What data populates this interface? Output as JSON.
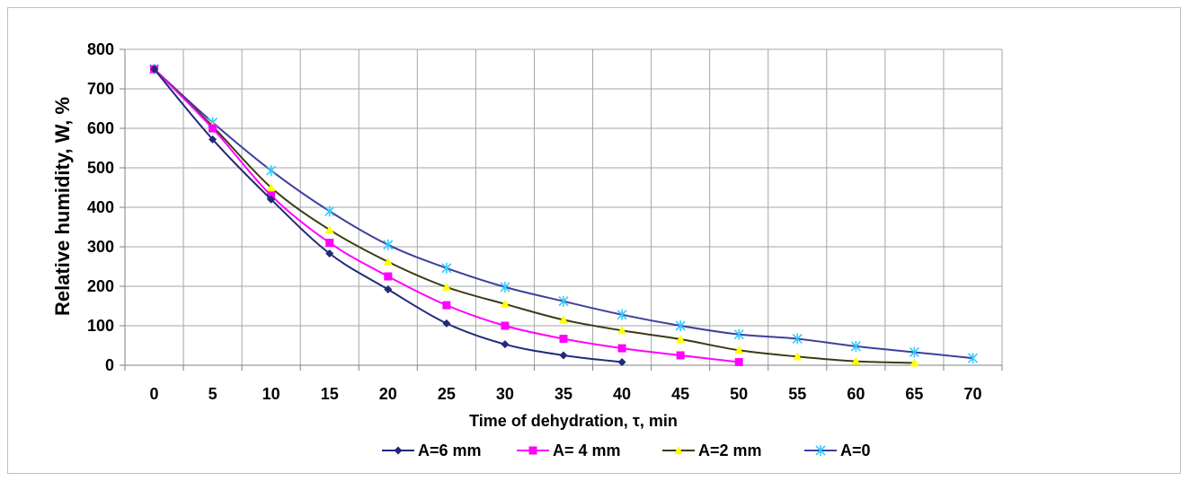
{
  "chart_data": {
    "type": "line",
    "xlabel": "Time of dehydration, τ, min",
    "ylabel": "Relative humidity, W, %",
    "xlim": [
      0,
      70
    ],
    "ylim": [
      0,
      800
    ],
    "x_ticks": [
      "0",
      "5",
      "10",
      "15",
      "20",
      "25",
      "30",
      "35",
      "40",
      "45",
      "50",
      "55",
      "60",
      "65",
      "70"
    ],
    "y_ticks": [
      "0",
      "100",
      "200",
      "300",
      "400",
      "500",
      "600",
      "700",
      "800"
    ],
    "grid": true,
    "legend_position": "bottom",
    "series": [
      {
        "name": "A=6 mm",
        "color": "#1f2a78",
        "marker": "diamond",
        "x": [
          0,
          5,
          10,
          15,
          20,
          25,
          30,
          35,
          40
        ],
        "values": [
          750,
          572,
          420,
          283,
          192,
          106,
          53,
          25,
          8
        ]
      },
      {
        "name": "A= 4 mm",
        "color": "#ff00ff",
        "marker": "square",
        "x": [
          0,
          5,
          10,
          15,
          20,
          25,
          30,
          35,
          40,
          45,
          50
        ],
        "values": [
          750,
          600,
          430,
          310,
          225,
          152,
          100,
          67,
          43,
          25,
          8
        ]
      },
      {
        "name": "A=2 mm",
        "color": "#3b3b12",
        "marker_color": "#ffff00",
        "marker": "triangle",
        "x": [
          0,
          5,
          10,
          15,
          20,
          25,
          30,
          35,
          40,
          45,
          50,
          55,
          60,
          65
        ],
        "values": [
          750,
          605,
          450,
          343,
          262,
          198,
          155,
          115,
          88,
          66,
          38,
          22,
          10,
          6
        ]
      },
      {
        "name": "A=0",
        "color": "#3f3f9f",
        "marker_color": "#33ccff",
        "marker": "star",
        "x": [
          0,
          5,
          10,
          15,
          20,
          25,
          30,
          35,
          40,
          45,
          50,
          55,
          60,
          65,
          70
        ],
        "values": [
          750,
          615,
          493,
          390,
          305,
          246,
          198,
          162,
          128,
          100,
          78,
          67,
          48,
          33,
          18
        ]
      }
    ]
  }
}
